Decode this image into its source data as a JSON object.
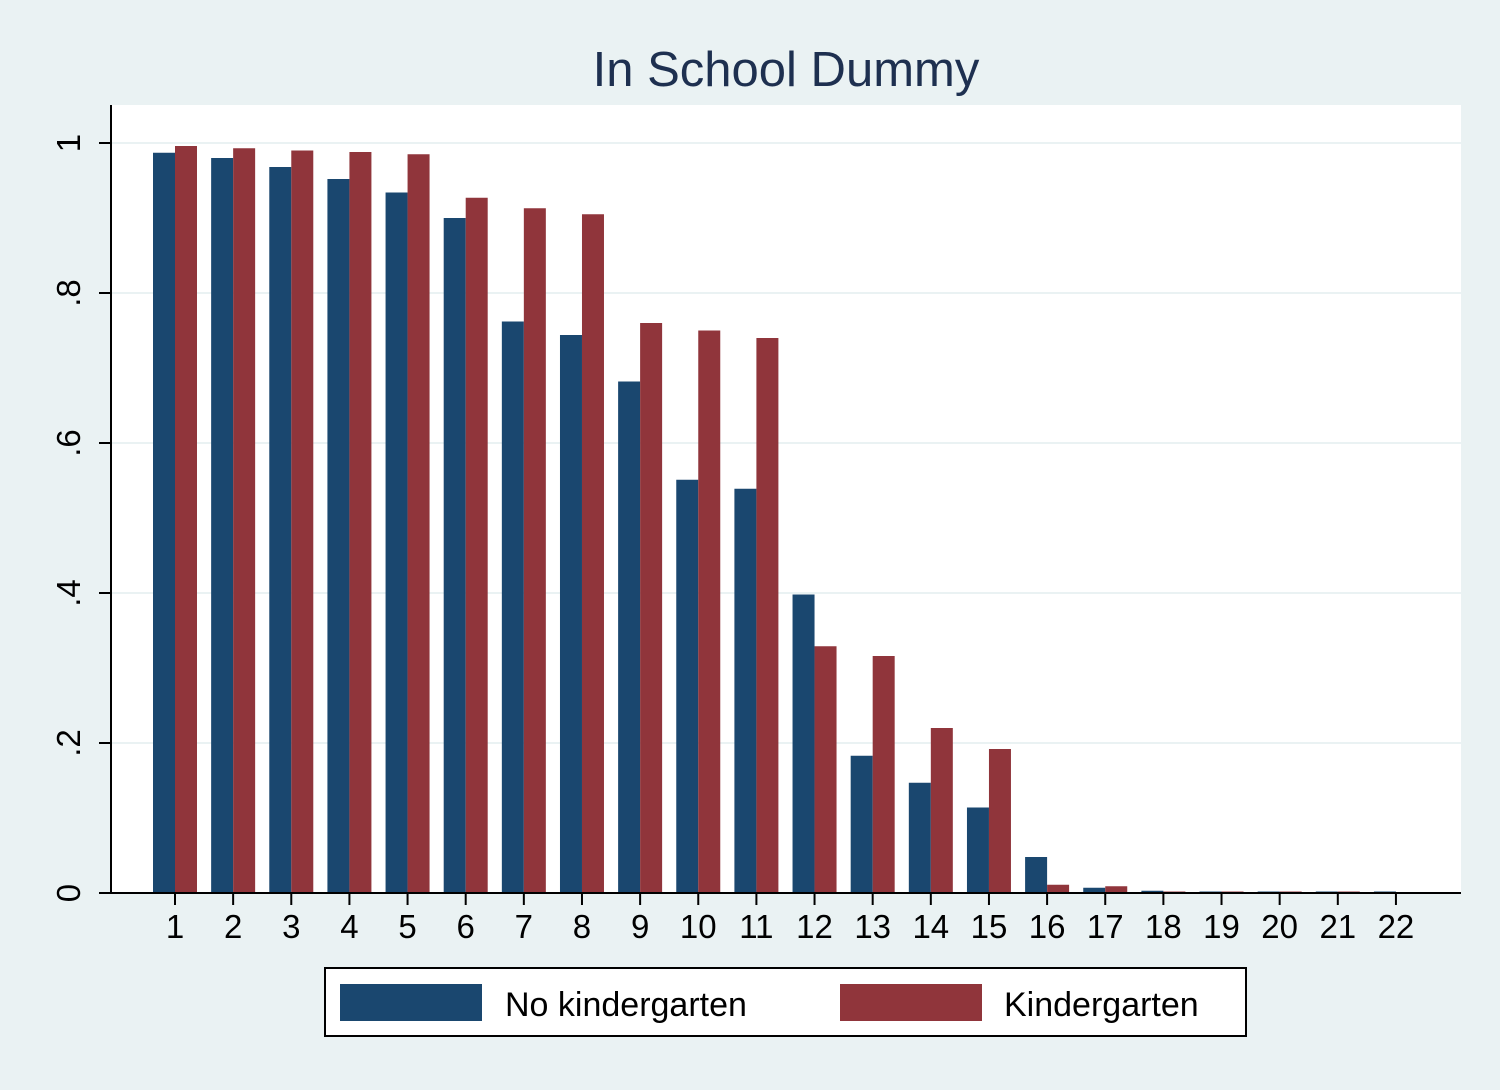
{
  "chart_data": {
    "type": "bar",
    "title": "In School Dummy",
    "xlabel": "",
    "ylabel": "",
    "categories": [
      "1",
      "2",
      "3",
      "4",
      "5",
      "6",
      "7",
      "8",
      "9",
      "10",
      "11",
      "12",
      "13",
      "14",
      "15",
      "16",
      "17",
      "18",
      "19",
      "20",
      "21",
      "22"
    ],
    "ylim": [
      0,
      1
    ],
    "yticks": [
      0,
      0.2,
      0.4,
      0.6,
      0.8,
      1
    ],
    "ytick_labels": [
      "0",
      ".2",
      ".4",
      ".6",
      ".8",
      "1"
    ],
    "grid": true,
    "legend_position": "bottom",
    "series": [
      {
        "name": "No kindergarten",
        "color": "#1a476f",
        "values": [
          0.987,
          0.98,
          0.968,
          0.952,
          0.934,
          0.9,
          0.762,
          0.744,
          0.682,
          0.551,
          0.539,
          0.398,
          0.183,
          0.147,
          0.114,
          0.048,
          0.007,
          0.003,
          0.002,
          0.002,
          0.002,
          0.002
        ]
      },
      {
        "name": "Kindergarten",
        "color": "#90353b",
        "values": [
          0.996,
          0.993,
          0.99,
          0.988,
          0.985,
          0.927,
          0.913,
          0.905,
          0.76,
          0.75,
          0.74,
          0.329,
          0.316,
          0.22,
          0.192,
          0.011,
          0.009,
          0.002,
          0.002,
          0.002,
          0.002,
          0
        ]
      }
    ]
  }
}
